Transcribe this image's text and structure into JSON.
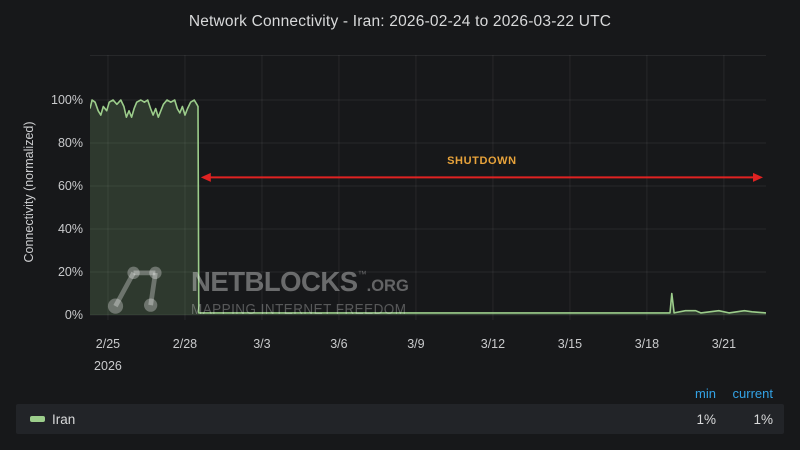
{
  "title": "Network Connectivity - Iran: 2026-02-24 to 2026-03-22 UTC",
  "colors": {
    "background": "#17181a",
    "grid": "rgba(255,255,255,0.07)",
    "line_green": "#9ccd8b",
    "fill_green": "rgba(156,208,140,0.18)",
    "arrow_red": "#e02222",
    "annotation_orange": "#e8a33b",
    "legend_header_blue": "#33a2e5"
  },
  "watermark": {
    "brand": "NETBLOCKS",
    "trademark": "™",
    "domain": ".ORG",
    "tagline": "MAPPING INTERNET FREEDOM"
  },
  "legend": {
    "headers": {
      "min": "min",
      "current": "current"
    },
    "series": [
      {
        "label": "Iran",
        "min": "1%",
        "current": "1%",
        "color": "#9ccd8b"
      }
    ]
  },
  "chart_data": {
    "type": "line",
    "title": "Network Connectivity - Iran: 2026-02-24 to 2026-03-22 UTC",
    "xlabel": "",
    "ylabel": "Connectivity (normalized)",
    "x_unit": "days since 2026-02-24 00:00 UTC",
    "x_domain": [
      0.3,
      26.64
    ],
    "ylim": [
      0,
      125
    ],
    "grid": true,
    "legend_position": "bottom",
    "y_tick_values": [
      0,
      20,
      40,
      60,
      80,
      100
    ],
    "y_tick_labels": [
      "0%",
      "20%",
      "40%",
      "60%",
      "80%",
      "100%"
    ],
    "x_ticks": [
      {
        "day": 1,
        "label": "2/25",
        "sub": "2026"
      },
      {
        "day": 4,
        "label": "2/28"
      },
      {
        "day": 7,
        "label": "3/3"
      },
      {
        "day": 10,
        "label": "3/6"
      },
      {
        "day": 13,
        "label": "3/9"
      },
      {
        "day": 16,
        "label": "3/12"
      },
      {
        "day": 19,
        "label": "3/15"
      },
      {
        "day": 22,
        "label": "3/18"
      },
      {
        "day": 25,
        "label": "3/21"
      }
    ],
    "annotation": {
      "label": "SHUTDOWN",
      "start_day": 4.54,
      "end_day": 26.64,
      "y_pct": 64,
      "arrow_color": "#e02222",
      "label_color": "#e8a33b"
    },
    "series": [
      {
        "name": "Iran",
        "color": "#9ccd8b",
        "fill": "rgba(156,208,140,0.18)",
        "points": [
          [
            0.3,
            96
          ],
          [
            0.38,
            100
          ],
          [
            0.5,
            99
          ],
          [
            0.62,
            95
          ],
          [
            0.72,
            93
          ],
          [
            0.82,
            97
          ],
          [
            0.95,
            95
          ],
          [
            1.05,
            99
          ],
          [
            1.2,
            100
          ],
          [
            1.35,
            98
          ],
          [
            1.5,
            100
          ],
          [
            1.62,
            97
          ],
          [
            1.72,
            92
          ],
          [
            1.82,
            95
          ],
          [
            1.92,
            92
          ],
          [
            2.02,
            96
          ],
          [
            2.12,
            99
          ],
          [
            2.28,
            100
          ],
          [
            2.42,
            99
          ],
          [
            2.55,
            100
          ],
          [
            2.66,
            96
          ],
          [
            2.76,
            93
          ],
          [
            2.86,
            96
          ],
          [
            2.96,
            92
          ],
          [
            3.06,
            95
          ],
          [
            3.16,
            98
          ],
          [
            3.3,
            100
          ],
          [
            3.45,
            99
          ],
          [
            3.6,
            100
          ],
          [
            3.7,
            96
          ],
          [
            3.8,
            94
          ],
          [
            3.9,
            97
          ],
          [
            4.0,
            93
          ],
          [
            4.1,
            96
          ],
          [
            4.22,
            99
          ],
          [
            4.36,
            100
          ],
          [
            4.46,
            98
          ],
          [
            4.51,
            97
          ],
          [
            4.54,
            1
          ],
          [
            6,
            1
          ],
          [
            8,
            1
          ],
          [
            10,
            1
          ],
          [
            12,
            1
          ],
          [
            14,
            1
          ],
          [
            16,
            1
          ],
          [
            18,
            1
          ],
          [
            20,
            1
          ],
          [
            22,
            1
          ],
          [
            22.9,
            1
          ],
          [
            22.97,
            10
          ],
          [
            23.06,
            1
          ],
          [
            23.5,
            2
          ],
          [
            23.9,
            2
          ],
          [
            24.1,
            1
          ],
          [
            24.8,
            2
          ],
          [
            25.2,
            1
          ],
          [
            25.8,
            2
          ],
          [
            26.1,
            1.5
          ],
          [
            26.64,
            1
          ]
        ]
      }
    ]
  }
}
